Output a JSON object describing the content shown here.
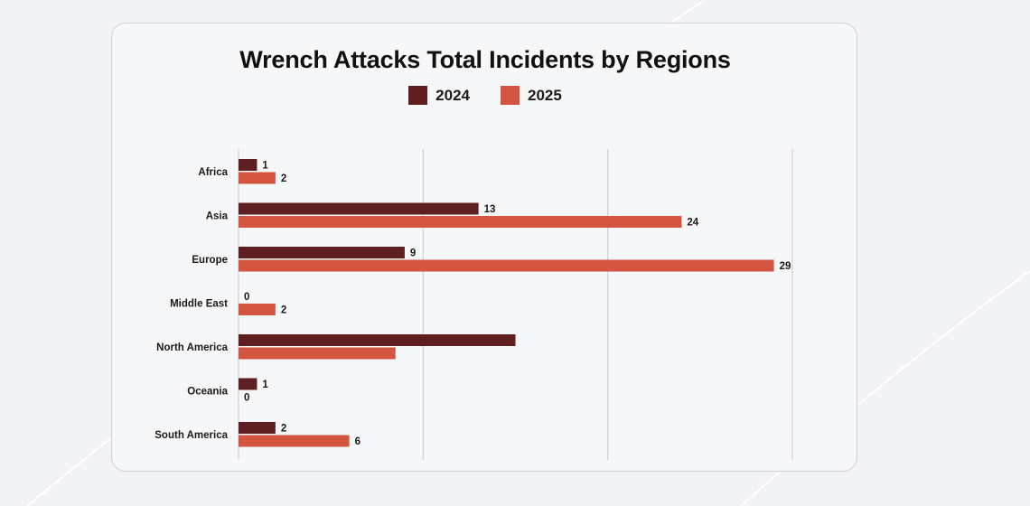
{
  "colors": {
    "background": "#f2f3f6",
    "card": "#f6f7f9",
    "series_2024": "#5e1f20",
    "series_2025": "#d35441",
    "gridline": "#c9cacd"
  },
  "chart_data": {
    "type": "bar",
    "orientation": "horizontal",
    "title": "Wrench Attacks Total Incidents by Regions",
    "xlabel": "",
    "ylabel": "",
    "xlim": [
      0,
      30
    ],
    "grid": true,
    "legend_position": "top-center",
    "categories": [
      "Africa",
      "Asia",
      "Europe",
      "Middle East",
      "North America",
      "Oceania",
      "South America"
    ],
    "series": [
      {
        "name": "2024",
        "color": "#5e1f20",
        "values": [
          1,
          13,
          9,
          0,
          15,
          1,
          2
        ],
        "labels": [
          "1",
          "13",
          "9",
          "0",
          "",
          "1",
          "2"
        ]
      },
      {
        "name": "2025",
        "color": "#d35441",
        "values": [
          2,
          24,
          29,
          2,
          8.5,
          0,
          6
        ],
        "labels": [
          "2",
          "24",
          "29",
          "2",
          "",
          "0",
          "6"
        ]
      }
    ]
  }
}
